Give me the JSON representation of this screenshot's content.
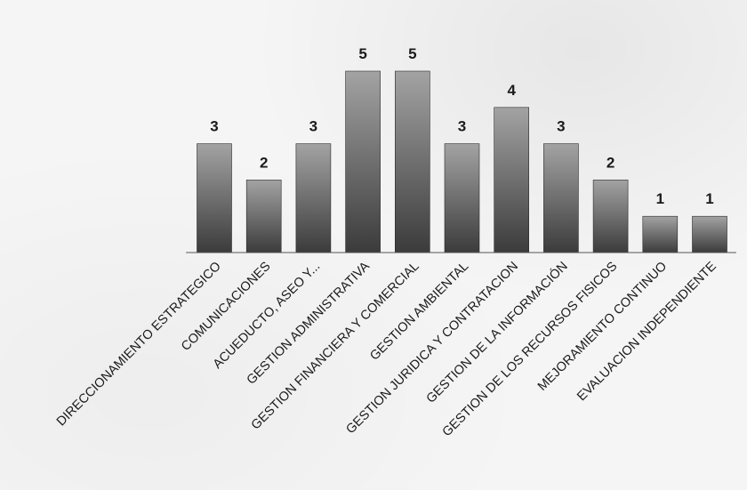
{
  "chart_data": {
    "type": "bar",
    "categories": [
      "DIRECCIONAMIENTO ESTRATEGICO",
      "COMUNICACIONES",
      "ACUEDUCTO, ASEO Y...",
      "GESTION ADMINISTRATIVA",
      "GESTION FINANCIERA Y COMERCIAL",
      "GESTION AMBIENTAL",
      "GESTION JURIDICA Y CONTRATACION",
      "GESTION DE LA INFORMACIÓN",
      "GESTION DE LOS RECURSOS FISICOS",
      "MEJORAMIENTO CONTINUO",
      "EVALUACION INDEPENDIENTE"
    ],
    "values": [
      3,
      2,
      3,
      5,
      5,
      3,
      4,
      3,
      2,
      1,
      1
    ],
    "title": "",
    "xlabel": "",
    "ylabel": "",
    "ylim": [
      0,
      5
    ],
    "grid": false,
    "legend": "none",
    "data_labels": true,
    "colors": {
      "bar_top": "#a3a3a3",
      "bar_bottom": "#3b3b3b",
      "bar_edge": "#2a2a2a",
      "axis": "#555555"
    }
  }
}
